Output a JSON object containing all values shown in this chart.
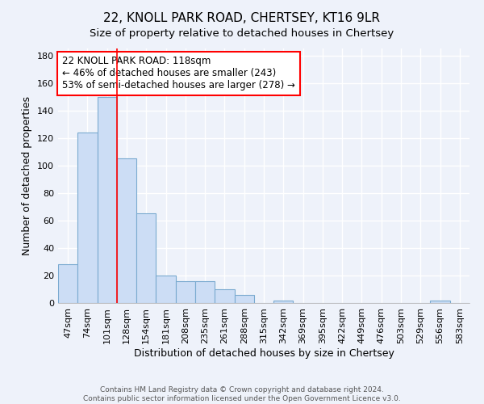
{
  "title": "22, KNOLL PARK ROAD, CHERTSEY, KT16 9LR",
  "subtitle": "Size of property relative to detached houses in Chertsey",
  "xlabel": "Distribution of detached houses by size in Chertsey",
  "ylabel": "Number of detached properties",
  "bar_labels": [
    "47sqm",
    "74sqm",
    "101sqm",
    "128sqm",
    "154sqm",
    "181sqm",
    "208sqm",
    "235sqm",
    "261sqm",
    "288sqm",
    "315sqm",
    "342sqm",
    "369sqm",
    "395sqm",
    "422sqm",
    "449sqm",
    "476sqm",
    "503sqm",
    "529sqm",
    "556sqm",
    "583sqm"
  ],
  "bar_values": [
    28,
    124,
    150,
    105,
    65,
    20,
    16,
    16,
    10,
    6,
    0,
    2,
    0,
    0,
    0,
    0,
    0,
    0,
    0,
    2,
    0
  ],
  "bar_color": "#ccddf5",
  "bar_edge_color": "#7aaad0",
  "vline_x": 2.5,
  "vline_color": "red",
  "annotation_text": "22 KNOLL PARK ROAD: 118sqm\n← 46% of detached houses are smaller (243)\n53% of semi-detached houses are larger (278) →",
  "annotation_box_color": "white",
  "annotation_box_edge_color": "red",
  "ylim": [
    0,
    185
  ],
  "yticks": [
    0,
    20,
    40,
    60,
    80,
    100,
    120,
    140,
    160,
    180
  ],
  "title_fontsize": 11,
  "subtitle_fontsize": 9.5,
  "xlabel_fontsize": 9,
  "ylabel_fontsize": 9,
  "annotation_fontsize": 8.5,
  "tick_fontsize": 8,
  "footer_text": "Contains HM Land Registry data © Crown copyright and database right 2024.\nContains public sector information licensed under the Open Government Licence v3.0.",
  "background_color": "#eef2fa",
  "grid_color": "white"
}
